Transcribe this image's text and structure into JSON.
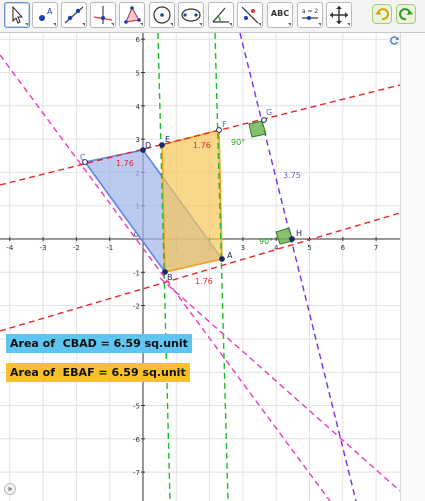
{
  "toolbar": {
    "tools": [
      {
        "name": "move-tool",
        "icon": "cursor-arrow-icon"
      },
      {
        "name": "point-tool",
        "icon": "point-icon",
        "label": "A"
      },
      {
        "name": "line-tool",
        "icon": "line-icon"
      },
      {
        "name": "perpendicular-line-tool",
        "icon": "perpendicular-icon"
      },
      {
        "name": "polygon-tool",
        "icon": "polygon-icon"
      },
      {
        "name": "circle-tool",
        "icon": "circle-icon"
      },
      {
        "name": "ellipse-tool",
        "icon": "ellipse-icon"
      },
      {
        "name": "angle-tool",
        "icon": "angle-icon"
      },
      {
        "name": "reflect-tool",
        "icon": "reflect-icon"
      },
      {
        "name": "text-tool",
        "icon": "text-icon",
        "label": "ABC"
      },
      {
        "name": "slider-tool",
        "icon": "slider-icon",
        "label": "a = 2"
      },
      {
        "name": "move-graphics-view-tool",
        "icon": "move-view-icon"
      }
    ],
    "undo_icon": "undo-icon",
    "redo_icon": "redo-icon"
  },
  "graphics": {
    "x_ticks": [
      "-4",
      "-3",
      "-2",
      "-1",
      "1",
      "2",
      "3",
      "4",
      "5",
      "6",
      "7"
    ],
    "y_ticks": [
      "6",
      "5",
      "4",
      "3",
      "2",
      "1",
      "-1",
      "-2",
      "-3",
      "-4",
      "-5",
      "-6",
      "-7"
    ],
    "origin_label": "0",
    "points": {
      "A": "A",
      "B": "B",
      "C": "C",
      "D": "D",
      "E": "E",
      "F": "F",
      "G": "G",
      "H": "H"
    },
    "labels": {
      "cd_length": "1.76",
      "ef_length": "1.76",
      "ab_length": "1.76",
      "gh_length": "3.75",
      "angle_g": "90°",
      "angle_h": "90°"
    }
  },
  "areas": {
    "cbad": "Area of  CBAD = 6.59 sq.unit",
    "ebaf": "Area of  EBAF = 6.59 sq.unit"
  },
  "colors": {
    "cbad_fill": "#9fb3ea",
    "ebaf_fill": "#f7c65a",
    "red_dashed": "#e8272b",
    "green_dashed": "#1bbd2a",
    "magenta_dashed": "#ea3bc1",
    "purple_dashed": "#7a2cf0",
    "cbad_box": "#5ec4f0",
    "ebaf_box": "#f7c02c"
  },
  "side_icons": {
    "refresh": "refresh-icon",
    "play": "play-icon"
  }
}
